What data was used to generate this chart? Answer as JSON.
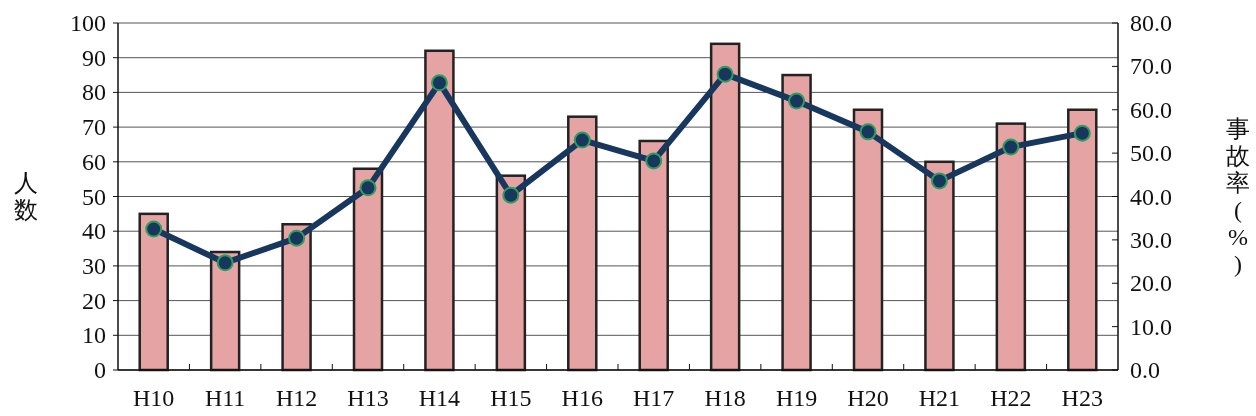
{
  "chart_data": {
    "type": "bar",
    "categories": [
      "H10",
      "H11",
      "H12",
      "H13",
      "H14",
      "H15",
      "H16",
      "H17",
      "H18",
      "H19",
      "H20",
      "H21",
      "H22",
      "H23"
    ],
    "series": [
      {
        "color": "#e6a3a3",
        "values": [
          45,
          34,
          42,
          58,
          92,
          56,
          73,
          66,
          94,
          85,
          75,
          60,
          71,
          75
        ]
      },
      {
        "type": "line",
        "axis": "y2",
        "color": "#17375e",
        "marker": "circle",
        "line_style": "solid",
        "values": [
          32.5,
          24.7,
          30.4,
          42.0,
          66.2,
          40.3,
          53.0,
          48.2,
          68.2,
          62.0,
          54.9,
          43.6,
          51.4,
          54.6
        ]
      }
    ],
    "ylabel": "人数",
    "y2label": "事故率(%)",
    "ylim": [
      0,
      100
    ],
    "yticks": [
      0,
      10,
      20,
      30,
      40,
      50,
      60,
      70,
      80,
      90,
      100
    ],
    "y2lim": [
      0,
      80
    ],
    "y2ticks": [
      {
        "value": 0,
        "label": "0.0"
      },
      {
        "value": 10,
        "label": "10.0"
      },
      {
        "value": 20,
        "label": "20.0"
      },
      {
        "value": 30,
        "label": "30.0"
      },
      {
        "value": 40,
        "label": "40.0"
      },
      {
        "value": 50,
        "label": "50.0"
      },
      {
        "value": 60,
        "label": "60.0"
      },
      {
        "value": 70,
        "label": "70.0"
      },
      {
        "value": 80,
        "label": "80.0"
      }
    ],
    "grid": "y"
  }
}
